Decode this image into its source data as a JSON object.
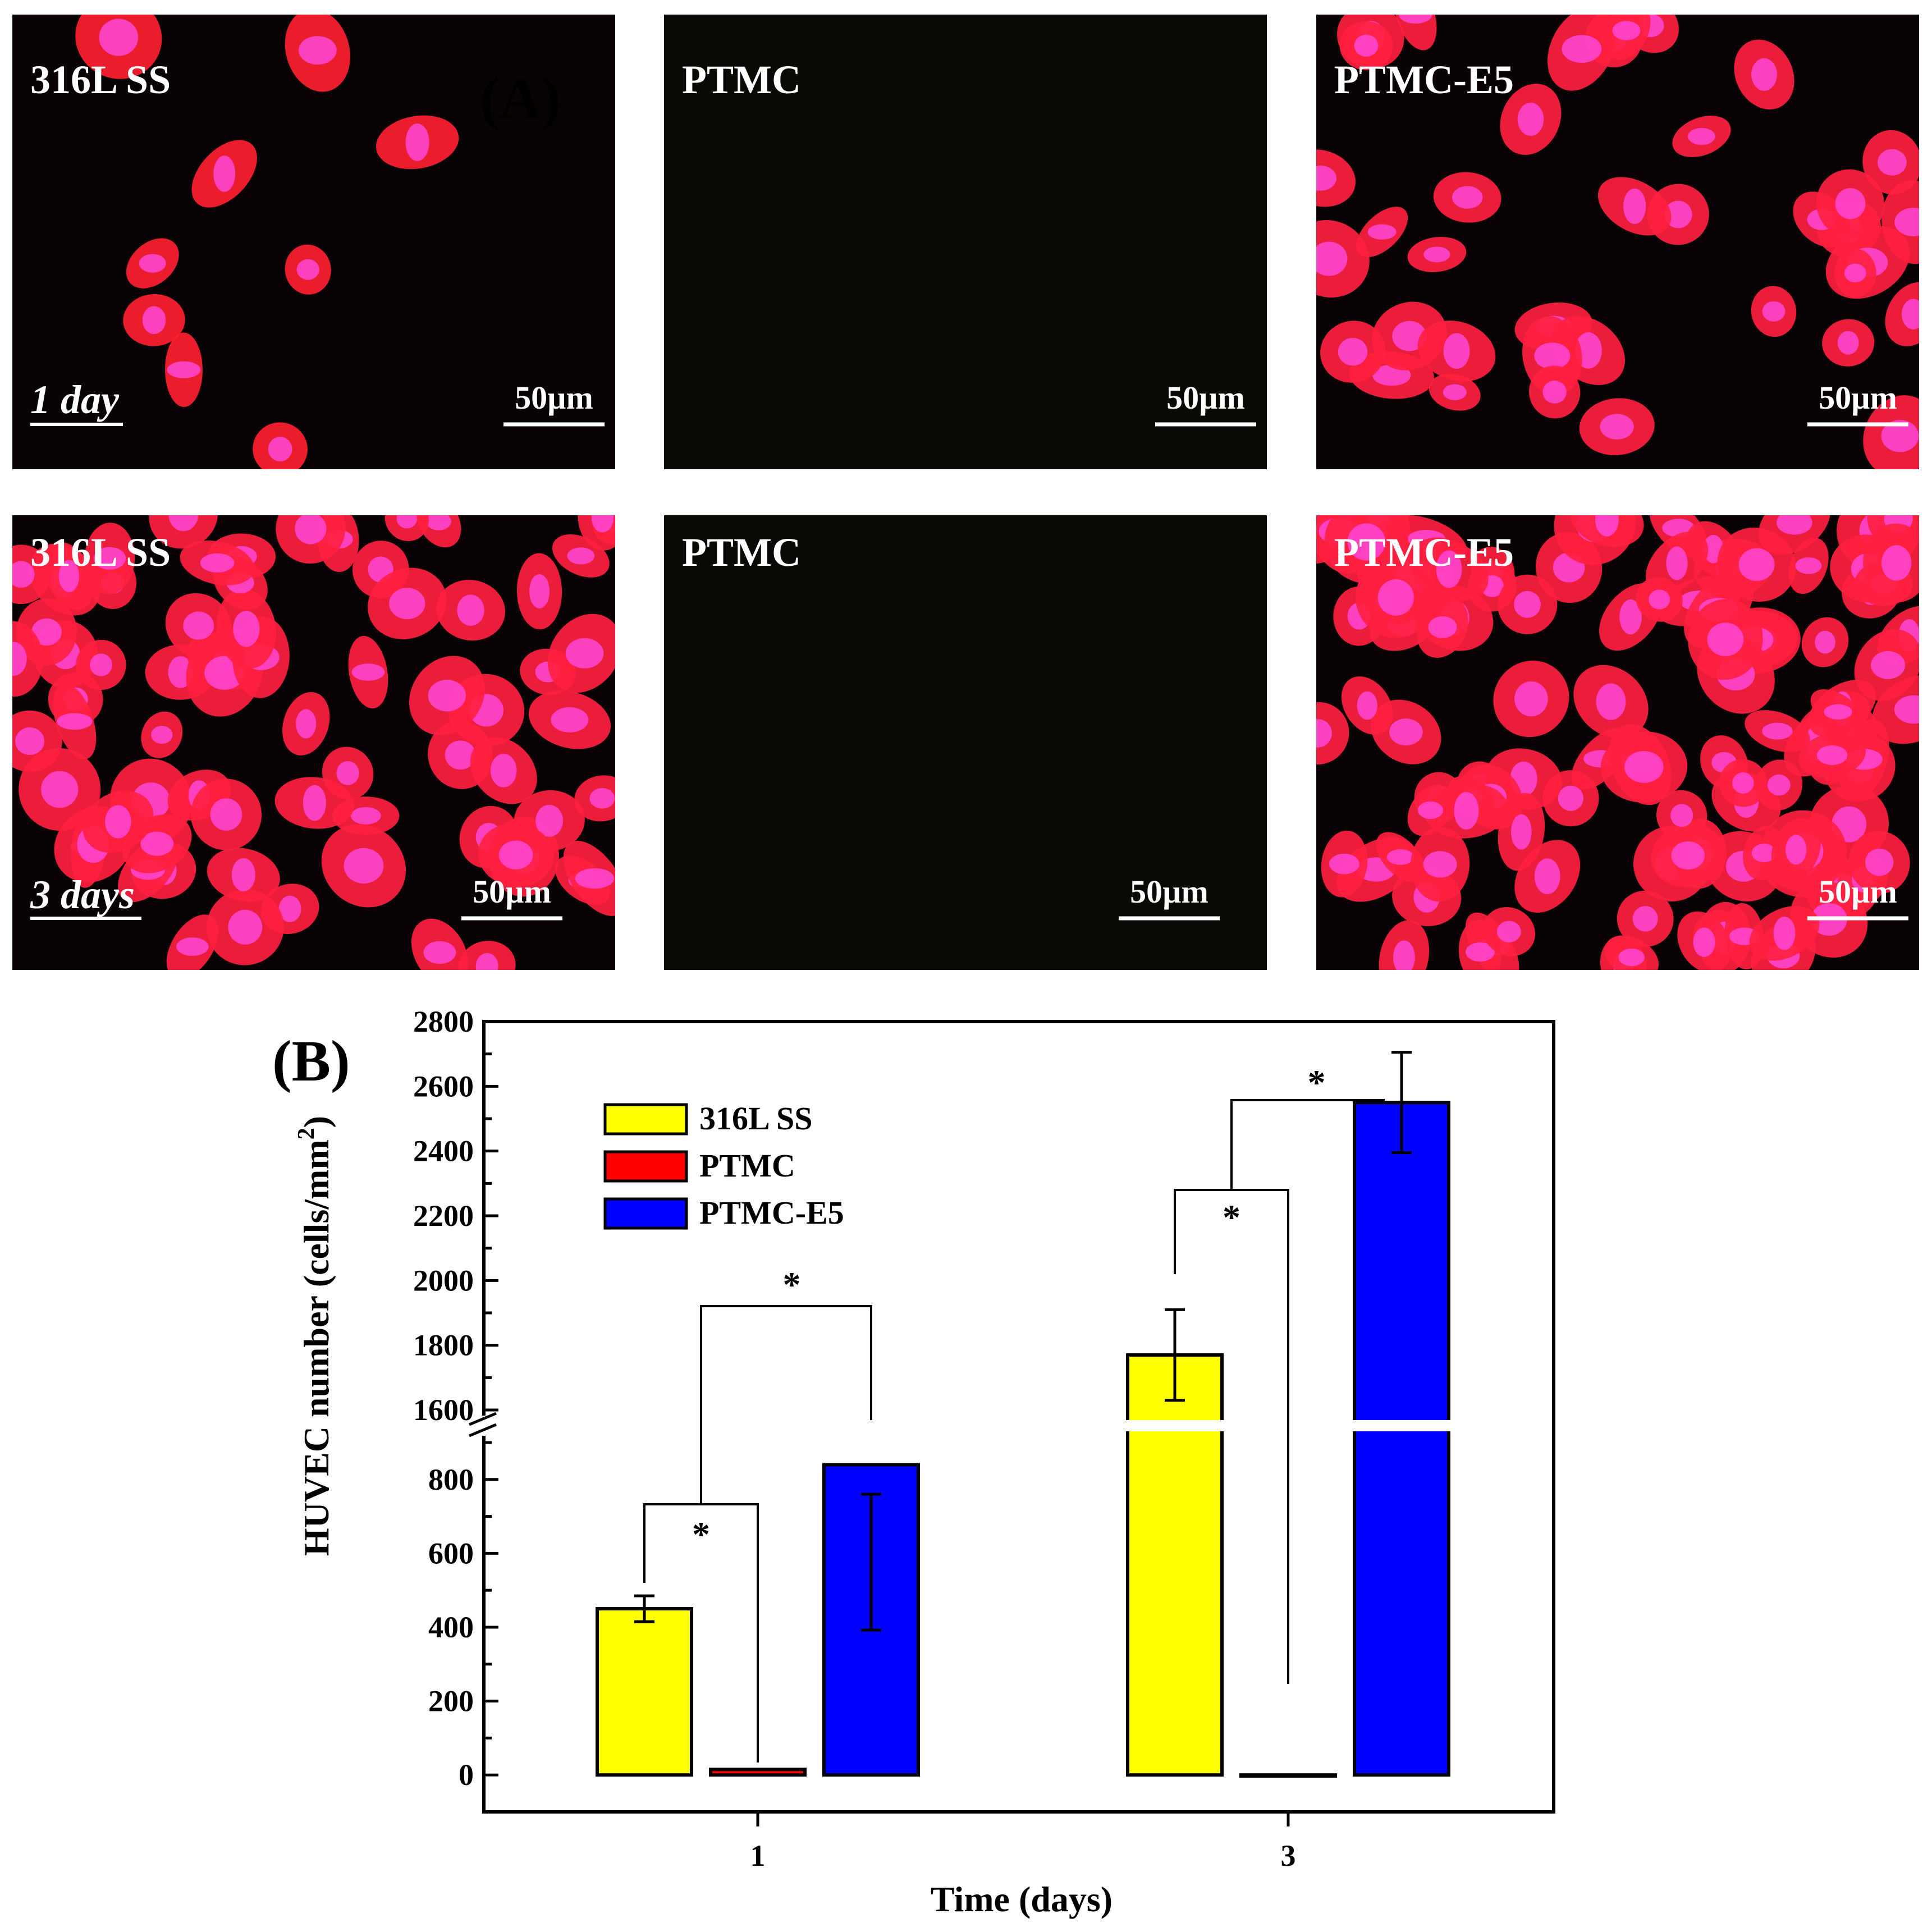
{
  "panel_a": {
    "tag": "(A)",
    "scale_bar_label": "50µm",
    "panels": [
      {
        "material": "316L SS",
        "day_label": "1 day",
        "cell_color": "#ff2030",
        "density": "sparse"
      },
      {
        "material": "PTMC",
        "day_label": "",
        "cell_color": "#1a2a14",
        "density": "none"
      },
      {
        "material": "PTMC-E5",
        "day_label": "",
        "cell_color": "#ff2040",
        "density": "medium"
      },
      {
        "material": "316L SS",
        "day_label": "3 days",
        "cell_color": "#ff2040",
        "density": "dense"
      },
      {
        "material": "PTMC",
        "day_label": "",
        "cell_color": "#1a2a14",
        "density": "none"
      },
      {
        "material": "PTMC-E5",
        "day_label": "",
        "cell_color": "#ff2040",
        "density": "very-dense"
      }
    ]
  },
  "panel_b": {
    "tag": "(B)",
    "significance_marker": "*"
  },
  "chart_data": {
    "type": "bar",
    "xlabel": "Time (days)",
    "ylabel": "HUVEC number (cells/mm",
    "ylabel_superscript": "2",
    "ylabel_close": ")",
    "categories": [
      "1",
      "3"
    ],
    "y_break": {
      "lower_range": [
        -100,
        900
      ],
      "upper_range": [
        1600,
        2800
      ]
    },
    "yticks_lower": [
      0,
      200,
      400,
      600,
      800
    ],
    "yticks_upper": [
      1600,
      1800,
      2000,
      2200,
      2400,
      2600,
      2800
    ],
    "legend_position": "top-left",
    "series": [
      {
        "name": "316L SS",
        "color": "#ffff00",
        "values": [
          450,
          1770
        ],
        "errors": [
          35,
          140
        ]
      },
      {
        "name": "PTMC",
        "color": "#ff0000",
        "values": [
          15,
          0
        ],
        "errors": [
          0,
          0
        ]
      },
      {
        "name": "PTMC-E5",
        "color": "#0000ff",
        "values": [
          840,
          2550
        ],
        "errors": [
          80,
          155
        ]
      }
    ],
    "significance": [
      {
        "category": "1",
        "pair": [
          "316L SS",
          "PTMC"
        ],
        "label": "*"
      },
      {
        "category": "1",
        "pair": [
          "316L SS",
          "PTMC-E5"
        ],
        "label": "*"
      },
      {
        "category": "3",
        "pair": [
          "316L SS",
          "PTMC"
        ],
        "label": "*"
      },
      {
        "category": "3",
        "pair": [
          "316L SS",
          "PTMC-E5"
        ],
        "label": "*"
      }
    ]
  }
}
